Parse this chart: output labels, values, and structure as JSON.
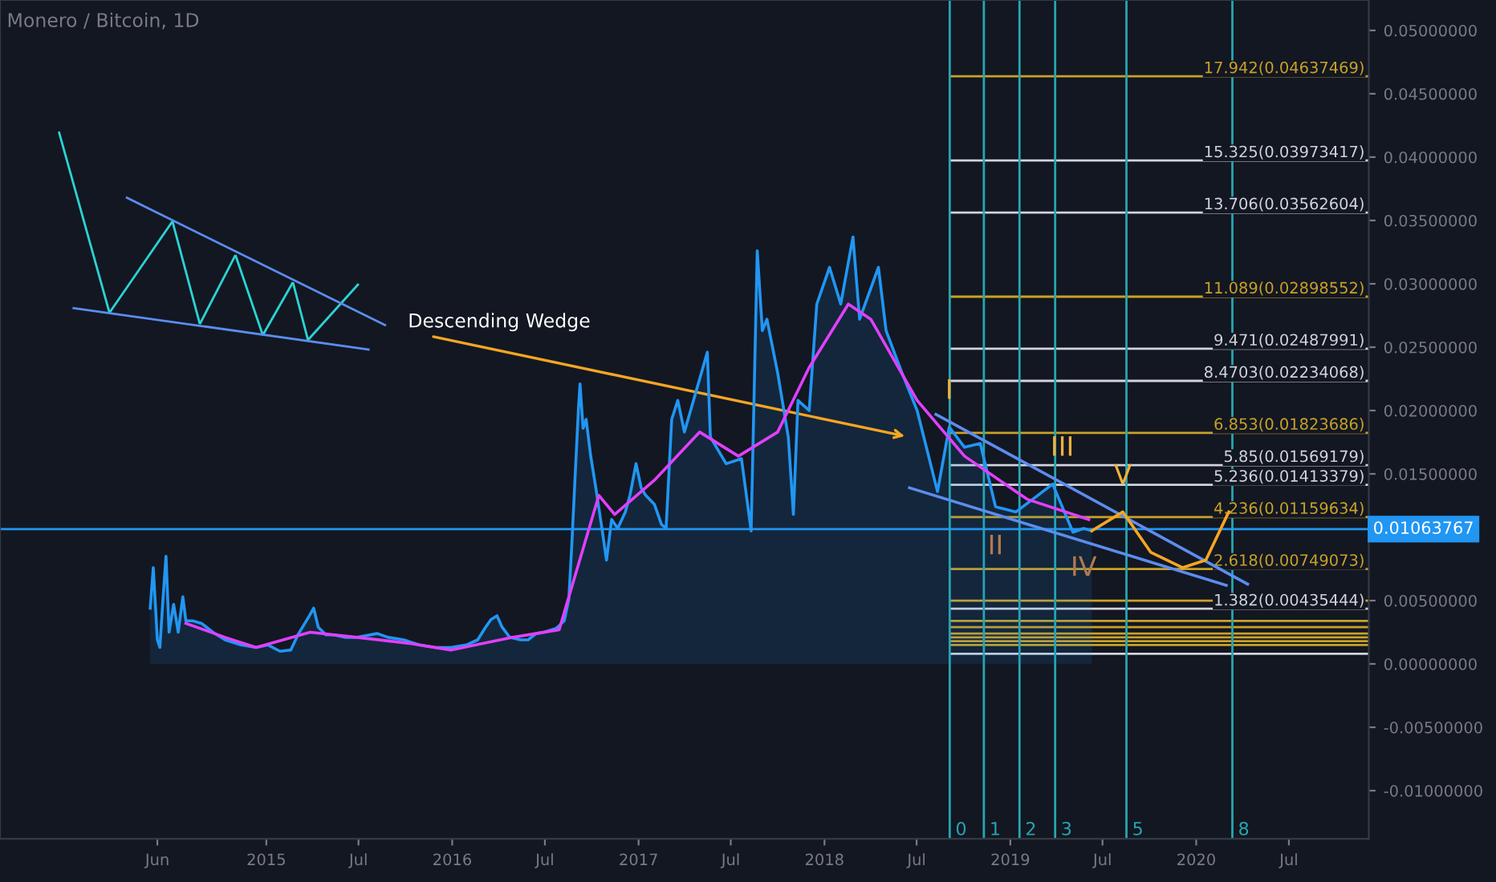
{
  "chart_data": {
    "type": "line",
    "title": "Monero / Bitcoin, 1D",
    "xlim": [
      "2013-07-27",
      "2020-12-05"
    ],
    "ylim": [
      -0.0138,
      0.0524
    ],
    "xticks": [
      {
        "value": "2014-06-01",
        "label": "Jun"
      },
      {
        "value": "2015-01-01",
        "label": "2015"
      },
      {
        "value": "2015-07-01",
        "label": "Jul"
      },
      {
        "value": "2016-01-01",
        "label": "2016"
      },
      {
        "value": "2016-07-01",
        "label": "Jul"
      },
      {
        "value": "2017-01-01",
        "label": "2017"
      },
      {
        "value": "2017-07-01",
        "label": "Jul"
      },
      {
        "value": "2018-01-01",
        "label": "2018"
      },
      {
        "value": "2018-07-01",
        "label": "Jul"
      },
      {
        "value": "2019-01-01",
        "label": "2019"
      },
      {
        "value": "2019-07-01",
        "label": "Jul"
      },
      {
        "value": "2020-01-01",
        "label": "2020"
      },
      {
        "value": "2020-07-01",
        "label": "Jul"
      }
    ],
    "yticks": [
      {
        "value": -0.01,
        "label": "-0.01000000"
      },
      {
        "value": -0.005,
        "label": "-0.00500000"
      },
      {
        "value": 0,
        "label": "0.00000000"
      },
      {
        "value": 0.005,
        "label": "0.00500000"
      },
      {
        "value": 0.01,
        "label": null
      },
      {
        "value": 0.015,
        "label": "0.01500000"
      },
      {
        "value": 0.02,
        "label": "0.02000000"
      },
      {
        "value": 0.025,
        "label": "0.02500000"
      },
      {
        "value": 0.03,
        "label": "0.03000000"
      },
      {
        "value": 0.035,
        "label": "0.03500000"
      },
      {
        "value": 0.04,
        "label": "0.04000000"
      },
      {
        "value": 0.045,
        "label": "0.04500000"
      },
      {
        "value": 0.05,
        "label": "0.05000000"
      }
    ],
    "grid": false,
    "legend": false,
    "marker": "none",
    "line_style": "solid",
    "series": [
      {
        "type": "area",
        "color": "#2196f3",
        "x": [
          "2014-05-18",
          "2014-05-24",
          "2014-06-01",
          "2014-06-06",
          "2014-06-12",
          "2014-06-18",
          "2014-06-24",
          "2014-07-03",
          "2014-07-12",
          "2014-07-21",
          "2014-07-27",
          "2014-08-09",
          "2014-08-27",
          "2014-09-18",
          "2014-10-12",
          "2014-11-12",
          "2014-12-12",
          "2015-01-04",
          "2015-01-28",
          "2015-02-18",
          "2015-03-04",
          "2015-03-25",
          "2015-04-04",
          "2015-04-13",
          "2015-04-28",
          "2015-05-13",
          "2015-06-04",
          "2015-06-28",
          "2015-08-07",
          "2015-08-28",
          "2015-09-28",
          "2015-10-28",
          "2015-11-28",
          "2015-12-29",
          "2016-01-29",
          "2016-02-20",
          "2016-03-05",
          "2016-03-17",
          "2016-03-29",
          "2016-04-08",
          "2016-04-23",
          "2016-05-14",
          "2016-05-29",
          "2016-06-14",
          "2016-06-29",
          "2016-07-23",
          "2016-08-08",
          "2016-08-17",
          "2016-08-23",
          "2016-08-29",
          "2016-09-05",
          "2016-09-08",
          "2016-09-14",
          "2016-09-20",
          "2016-09-29",
          "2016-10-09",
          "2016-10-21",
          "2016-10-30",
          "2016-11-09",
          "2016-11-21",
          "2016-12-06",
          "2016-12-15",
          "2016-12-27",
          "2017-01-06",
          "2017-01-15",
          "2017-02-01",
          "2017-02-15",
          "2017-02-24",
          "2017-03-07",
          "2017-03-19",
          "2017-04-01",
          "2017-05-16",
          "2017-05-22",
          "2017-06-22",
          "2017-07-22",
          "2017-08-10",
          "2017-08-22",
          "2017-09-01",
          "2017-09-10",
          "2017-10-01",
          "2017-10-22",
          "2017-11-01",
          "2017-11-10",
          "2017-12-02",
          "2017-12-17",
          "2018-01-11",
          "2018-02-02",
          "2018-02-26",
          "2018-03-11",
          "2018-04-17",
          "2018-05-02",
          "2018-06-02",
          "2018-07-02",
          "2018-08-11",
          "2018-09-03",
          "2018-10-03",
          "2018-11-03",
          "2018-12-03",
          "2019-01-12",
          "2019-02-24",
          "2019-03-25",
          "2019-04-13",
          "2019-05-04",
          "2019-05-25",
          "2019-06-10"
        ],
        "values": [
          0.0044,
          0.0076,
          0.0019,
          0.0013,
          0.0051,
          0.0085,
          0.0025,
          0.0047,
          0.0025,
          0.0053,
          0.0034,
          0.0034,
          0.0032,
          0.0025,
          0.0019,
          0.0015,
          0.0013,
          0.0015,
          0.001,
          0.0011,
          0.0023,
          0.0037,
          0.0044,
          0.0029,
          0.0023,
          0.0023,
          0.0021,
          0.0021,
          0.0024,
          0.0021,
          0.0019,
          0.0015,
          0.0013,
          0.0013,
          0.0015,
          0.0019,
          0.0028,
          0.0035,
          0.0038,
          0.0029,
          0.0021,
          0.0019,
          0.0019,
          0.0024,
          0.0025,
          0.0028,
          0.0034,
          0.0051,
          0.0095,
          0.0145,
          0.0202,
          0.0221,
          0.0186,
          0.0193,
          0.0164,
          0.0139,
          0.0107,
          0.0082,
          0.0114,
          0.0107,
          0.012,
          0.0133,
          0.0158,
          0.0139,
          0.0133,
          0.0126,
          0.011,
          0.0107,
          0.0193,
          0.0208,
          0.0183,
          0.0246,
          0.0179,
          0.0158,
          0.0162,
          0.0105,
          0.0326,
          0.0263,
          0.0272,
          0.023,
          0.0179,
          0.0118,
          0.0208,
          0.02,
          0.0284,
          0.0313,
          0.0284,
          0.0337,
          0.0272,
          0.0313,
          0.0263,
          0.023,
          0.02,
          0.0136,
          0.0187,
          0.0171,
          0.0174,
          0.0124,
          0.012,
          0.0133,
          0.0142,
          0.0124,
          0.0104,
          0.0107,
          0.0105
        ]
      },
      {
        "color": "#e040fb",
        "x": [
          "2014-07-27",
          "2014-10-12",
          "2014-12-12",
          "2015-03-28",
          "2015-06-28",
          "2015-10-13",
          "2015-12-29",
          "2016-04-29",
          "2016-07-29",
          "2016-10-15",
          "2016-11-15",
          "2017-02-01",
          "2017-05-01",
          "2017-07-16",
          "2017-10-01",
          "2017-12-02",
          "2018-02-17",
          "2018-04-02",
          "2018-07-02",
          "2018-10-03",
          "2019-02-03",
          "2019-06-04"
        ],
        "values": [
          0.0032,
          0.0021,
          0.0013,
          0.0025,
          0.0021,
          0.0016,
          0.0011,
          0.0021,
          0.0027,
          0.0133,
          0.0118,
          0.0145,
          0.0183,
          0.0164,
          0.0183,
          0.0234,
          0.0284,
          0.0272,
          0.0208,
          0.0164,
          0.013,
          0.0114
        ]
      },
      {
        "color": "#5b8def",
        "x": [
          "2018-08-08",
          "2020-04-11"
        ],
        "values": [
          0.0197,
          0.0063
        ]
      },
      {
        "color": "#5b8def",
        "x": [
          "2018-06-17",
          "2020-02-29"
        ],
        "values": [
          0.0139,
          0.0062
        ]
      },
      {
        "color": "#f5a623",
        "x": [
          "2019-06-10",
          "2019-08-10",
          "2019-10-04",
          "2019-12-05",
          "2020-01-20",
          "2020-03-05"
        ],
        "values": [
          0.0105,
          0.012,
          0.0088,
          0.0076,
          0.0082,
          0.012
        ]
      }
    ],
    "ref_lines": [
      {
        "axis": "y",
        "value": 0.01063767,
        "label": "0.01063767",
        "color": "#2196f3"
      },
      {
        "axis": "y",
        "value": 0.04637469,
        "label": "17.942(0.04637469)",
        "color": "#c9a227"
      },
      {
        "axis": "y",
        "value": 0.03973417,
        "label": "15.325(0.03973417)",
        "color": "#d1d4dc"
      },
      {
        "axis": "y",
        "value": 0.03562604,
        "label": "13.706(0.03562604)",
        "color": "#d1d4dc"
      },
      {
        "axis": "y",
        "value": 0.02898552,
        "label": "11.089(0.02898552)",
        "color": "#c9a227"
      },
      {
        "axis": "y",
        "value": 0.02487991,
        "label": "9.471(0.02487991)",
        "color": "#d1d4dc"
      },
      {
        "axis": "y",
        "value": 0.02234068,
        "label": "8.4703(0.02234068)",
        "color": "#d1d4dc"
      },
      {
        "axis": "y",
        "value": 0.01823686,
        "label": "6.853(0.01823686)",
        "color": "#c9a227"
      },
      {
        "axis": "y",
        "value": 0.01569179,
        "label": "5.85(0.01569179)",
        "color": "#d1d4dc"
      },
      {
        "axis": "y",
        "value": 0.01413379,
        "label": "5.236(0.01413379)",
        "color": "#d1d4dc"
      },
      {
        "axis": "y",
        "value": 0.01159634,
        "label": "4.236(0.01159634)",
        "color": "#c9a227"
      },
      {
        "axis": "y",
        "value": 0.00749073,
        "label": "2.618(0.00749073)",
        "color": "#c9a227"
      },
      {
        "axis": "y",
        "value": 0.005,
        "label": null,
        "color": "#c9a227"
      },
      {
        "axis": "y",
        "value": 0.00435444,
        "label": "1.382(0.00435444)",
        "color": "#d1d4dc"
      },
      {
        "axis": "y",
        "value": 0.0034,
        "label": null,
        "color": "#c9a227"
      },
      {
        "axis": "y",
        "value": 0.0029,
        "label": null,
        "color": "#c9a227"
      },
      {
        "axis": "y",
        "value": 0.0024,
        "label": null,
        "color": "#c9a227"
      },
      {
        "axis": "y",
        "value": 0.0021,
        "label": null,
        "color": "#c9a227"
      },
      {
        "axis": "y",
        "value": 0.0018,
        "label": null,
        "color": "#c9a227"
      },
      {
        "axis": "y",
        "value": 0.0015,
        "label": null,
        "color": "#c9a227"
      },
      {
        "axis": "y",
        "value": 0.0008,
        "label": null,
        "color": "#d1d4dc"
      },
      {
        "axis": "x",
        "value": "2018-09-04",
        "label": "0",
        "color": "#26a6b0"
      },
      {
        "axis": "x",
        "value": "2018-11-10",
        "label": "1",
        "color": "#26a6b0"
      },
      {
        "axis": "x",
        "value": "2019-01-19",
        "label": "2",
        "color": "#26a6b0"
      },
      {
        "axis": "x",
        "value": "2019-03-30",
        "label": "3",
        "color": "#26a6b0"
      },
      {
        "axis": "x",
        "value": "2019-08-17",
        "label": "5",
        "color": "#26a6b0"
      },
      {
        "axis": "x",
        "value": "2020-03-12",
        "label": "8",
        "color": "#26a6b0"
      }
    ],
    "annotations": [
      "Descending Wedge",
      {
        "text": "I",
        "x": "2018-09-03",
        "y": 0.0187
      },
      {
        "text": "II",
        "x": "2018-12-03",
        "y": 0.0124
      },
      {
        "text": "III",
        "x": "2019-04-13",
        "y": 0.0142
      },
      {
        "text": "IV",
        "x": "2019-05-25",
        "y": 0.0107
      },
      {
        "text": "V",
        "x": "2019-08-10",
        "y": 0.012
      }
    ]
  }
}
